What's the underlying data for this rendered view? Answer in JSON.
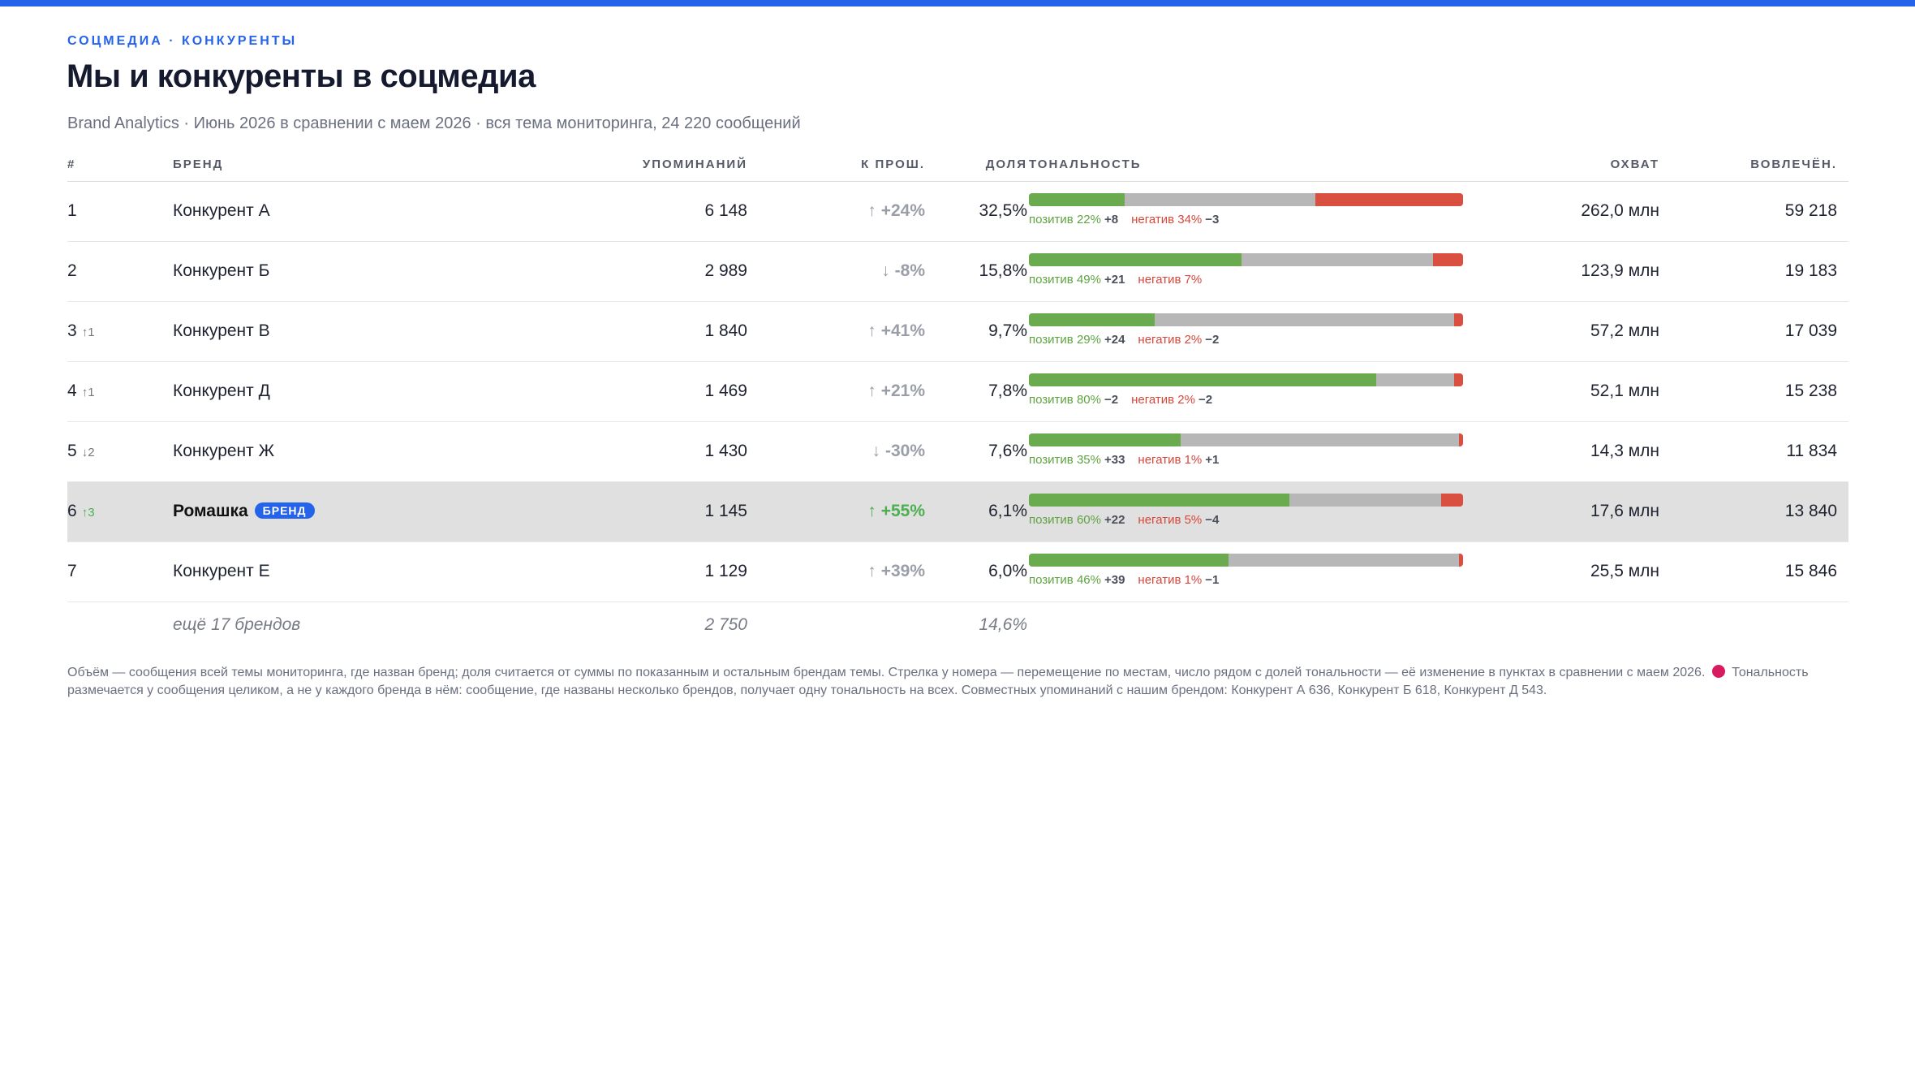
{
  "header": {
    "eyebrow": "СОЦМЕДИА · КОНКУРЕНТЫ",
    "title": "Мы и конкуренты в соцмедиа",
    "subtitle": "Brand Analytics · Июнь 2026 в сравнении с маем 2026 · вся тема мониторинга, 24 220 сообщений"
  },
  "columns": {
    "rank": "#",
    "brand": "БРЕНД",
    "mentions": "УПОМИНАНИЙ",
    "change": "К ПРОШ.",
    "share": "ДОЛЯ",
    "tone": "ТОНАЛЬНОСТЬ",
    "reach": "ОХВАТ",
    "engagement": "ВОВЛЕЧЁН."
  },
  "rows": [
    {
      "rank": "1",
      "move": "",
      "brand": "Конкурент А",
      "mentions": "6 148",
      "arrow": "↑",
      "change": "+24%",
      "share": "32,5%",
      "pos_pct": 22,
      "neg_pct": 34,
      "pos_label": "позитив 22%",
      "pos_delta": "+8",
      "neg_label": "негатив 34%",
      "neg_delta": "−3",
      "reach": "262,0 млн",
      "engagement": "59 218"
    },
    {
      "rank": "2",
      "move": "",
      "brand": "Конкурент Б",
      "mentions": "2 989",
      "arrow": "↓",
      "change": "-8%",
      "share": "15,8%",
      "pos_pct": 49,
      "neg_pct": 7,
      "pos_label": "позитив 49%",
      "pos_delta": "+21",
      "neg_label": "негатив 7%",
      "neg_delta": "",
      "reach": "123,9 млн",
      "engagement": "19 183"
    },
    {
      "rank": "3",
      "move": "↑1",
      "brand": "Конкурент В",
      "mentions": "1 840",
      "arrow": "↑",
      "change": "+41%",
      "share": "9,7%",
      "pos_pct": 29,
      "neg_pct": 2,
      "pos_label": "позитив 29%",
      "pos_delta": "+24",
      "neg_label": "негатив 2%",
      "neg_delta": "−2",
      "reach": "57,2 млн",
      "engagement": "17 039"
    },
    {
      "rank": "4",
      "move": "↑1",
      "brand": "Конкурент Д",
      "mentions": "1 469",
      "arrow": "↑",
      "change": "+21%",
      "share": "7,8%",
      "pos_pct": 80,
      "neg_pct": 2,
      "pos_label": "позитив 80%",
      "pos_delta": "−2",
      "neg_label": "негатив 2%",
      "neg_delta": "−2",
      "reach": "52,1 млн",
      "engagement": "15 238"
    },
    {
      "rank": "5",
      "move": "↓2",
      "brand": "Конкурент Ж",
      "mentions": "1 430",
      "arrow": "↓",
      "change": "-30%",
      "share": "7,6%",
      "pos_pct": 35,
      "neg_pct": 1,
      "pos_label": "позитив 35%",
      "pos_delta": "+33",
      "neg_label": "негатив 1%",
      "neg_delta": "+1",
      "reach": "14,3 млн",
      "engagement": "11 834"
    },
    {
      "rank": "6",
      "move": "↑3",
      "brand": "Ромашка",
      "badge": "БРЕНД",
      "mentions": "1 145",
      "arrow": "↑",
      "change": "+55%",
      "share": "6,1%",
      "pos_pct": 60,
      "neg_pct": 5,
      "pos_label": "позитив 60%",
      "pos_delta": "+22",
      "neg_label": "негатив 5%",
      "neg_delta": "−4",
      "reach": "17,6 млн",
      "engagement": "13 840"
    },
    {
      "rank": "7",
      "move": "",
      "brand": "Конкурент Е",
      "mentions": "1 129",
      "arrow": "↑",
      "change": "+39%",
      "share": "6,0%",
      "pos_pct": 46,
      "neg_pct": 1,
      "pos_label": "позитив 46%",
      "pos_delta": "+39",
      "neg_label": "негатив 1%",
      "neg_delta": "−1",
      "reach": "25,5 млн",
      "engagement": "15 846"
    }
  ],
  "more": {
    "label": "ещё 17 брендов",
    "mentions": "2 750",
    "share": "14,6%"
  },
  "footnote": {
    "part1": "Объём — сообщения всей темы мониторинга, где назван бренд; доля считается от суммы по показанным и остальным брендам темы. Стрелка у номера — перемещение по местам, число рядом с долей тональности — её изменение в пунктах в сравнении с маем 2026.",
    "part2": "Тональность размечается у сообщения целиком, а не у каждого бренда в нём: сообщение, где названы несколько брендов, получает одну тональность на всех. Совместных упоминаний с нашим брендом: Конкурент А 636, Конкурент Б 618, Конкурент Д 543."
  },
  "colors": {
    "accent": "#2563eb",
    "positive": "#6aab4f",
    "negative": "#d95040",
    "neutral": "#b7b7b7",
    "highlight_row": "#e0e0e0"
  }
}
